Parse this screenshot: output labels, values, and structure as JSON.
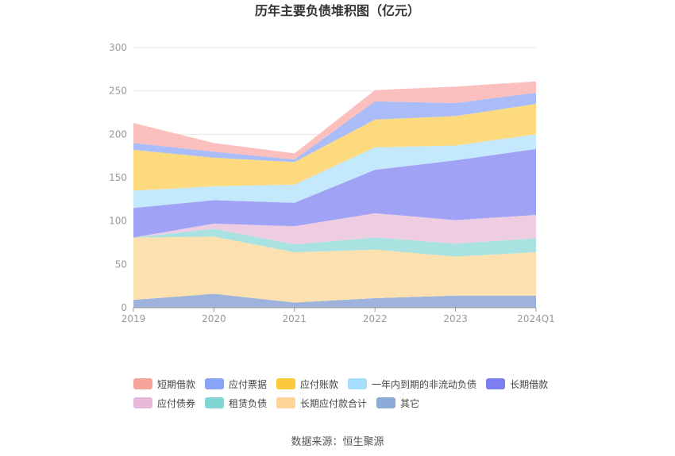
{
  "title": "历年主要负债堆积图（亿元）",
  "source": "数据来源：恒生聚源",
  "chart_data": {
    "type": "area",
    "stacked": true,
    "title": "历年主要负债堆积图（亿元）",
    "categories": [
      "2019",
      "2020",
      "2021",
      "2022",
      "2023",
      "2024Q1"
    ],
    "ylim": [
      0,
      300
    ],
    "yticks": [
      0,
      50,
      100,
      150,
      200,
      250,
      300
    ],
    "grid": true,
    "legend_position": "bottom",
    "series": [
      {
        "name": "其它",
        "color": "#9db3dc",
        "values": [
          9,
          16,
          6,
          11,
          14,
          14
        ]
      },
      {
        "name": "长期应付款合计",
        "color": "#fde0b0",
        "values": [
          72,
          66,
          58,
          56,
          45,
          50
        ]
      },
      {
        "name": "租赁负债",
        "color": "#a9e2e0",
        "values": [
          0,
          9,
          9,
          14,
          15,
          16
        ]
      },
      {
        "name": "应付债券",
        "color": "#eecde3",
        "values": [
          0,
          6,
          21,
          28,
          27,
          27
        ]
      },
      {
        "name": "长期借款",
        "color": "#a0a3f5",
        "values": [
          34,
          27,
          27,
          50,
          69,
          76
        ]
      },
      {
        "name": "一年内到期的非流动负债",
        "color": "#c4e8fc",
        "values": [
          20,
          16,
          21,
          26,
          17,
          17
        ]
      },
      {
        "name": "应付账款",
        "color": "#fdda7e",
        "values": [
          47,
          33,
          26,
          32,
          34,
          35
        ]
      },
      {
        "name": "应付票据",
        "color": "#abbdf8",
        "values": [
          8,
          7,
          3,
          21,
          15,
          13
        ]
      },
      {
        "name": "短期借款",
        "color": "#fbc0bd",
        "values": [
          23,
          10,
          7,
          13,
          19,
          13
        ]
      }
    ],
    "legend_order": [
      "短期借款",
      "应付票据",
      "应付账款",
      "一年内到期的非流动负债",
      "长期借款",
      "应付债券",
      "租赁负债",
      "长期应付款合计",
      "其它"
    ],
    "legend_colors": {
      "短期借款": "#f7a59a",
      "应付票据": "#8aa5f8",
      "应付账款": "#fdc93a",
      "一年内到期的非流动负债": "#a7dcfb",
      "长期借款": "#7b7ff0",
      "应付债券": "#e8b6d9",
      "租赁负债": "#7fd6d3",
      "长期应付款合计": "#fdd596",
      "其它": "#8eaad9"
    }
  }
}
